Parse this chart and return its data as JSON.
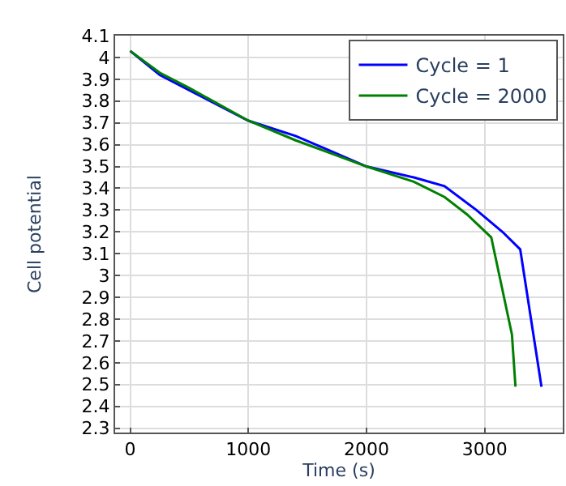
{
  "chart_data": {
    "type": "line",
    "xlabel": "Time (s)",
    "ylabel": "Cell potential",
    "xlim": [
      -127,
      3660
    ],
    "ylim": [
      2.28,
      4.1
    ],
    "xticks": [
      0,
      1000,
      2000,
      3000
    ],
    "yticks": [
      2.3,
      2.4,
      2.5,
      2.6,
      2.7,
      2.8,
      2.9,
      3,
      3.1,
      3.2,
      3.3,
      3.4,
      3.5,
      3.6,
      3.7,
      3.8,
      3.9,
      4,
      4.1
    ],
    "grid": true,
    "legend": "top right",
    "marker": "none",
    "line_style": "solid",
    "series": [
      {
        "name": "Cycle = 1",
        "color": "#0000ff",
        "x": [
          0,
          250,
          500,
          1000,
          1400,
          1700,
          2000,
          2400,
          2660,
          2930,
          3150,
          3300,
          3480
        ],
        "values": [
          4.03,
          3.92,
          3.85,
          3.71,
          3.64,
          3.57,
          3.5,
          3.45,
          3.41,
          3.3,
          3.2,
          3.12,
          2.49
        ]
      },
      {
        "name": "Cycle = 2000",
        "color": "#008000",
        "x": [
          0,
          250,
          500,
          1000,
          1400,
          1700,
          2000,
          2400,
          2660,
          2850,
          3055,
          3230,
          3260
        ],
        "values": [
          4.03,
          3.93,
          3.86,
          3.71,
          3.62,
          3.56,
          3.5,
          3.43,
          3.36,
          3.28,
          3.175,
          2.73,
          2.49
        ]
      }
    ]
  }
}
